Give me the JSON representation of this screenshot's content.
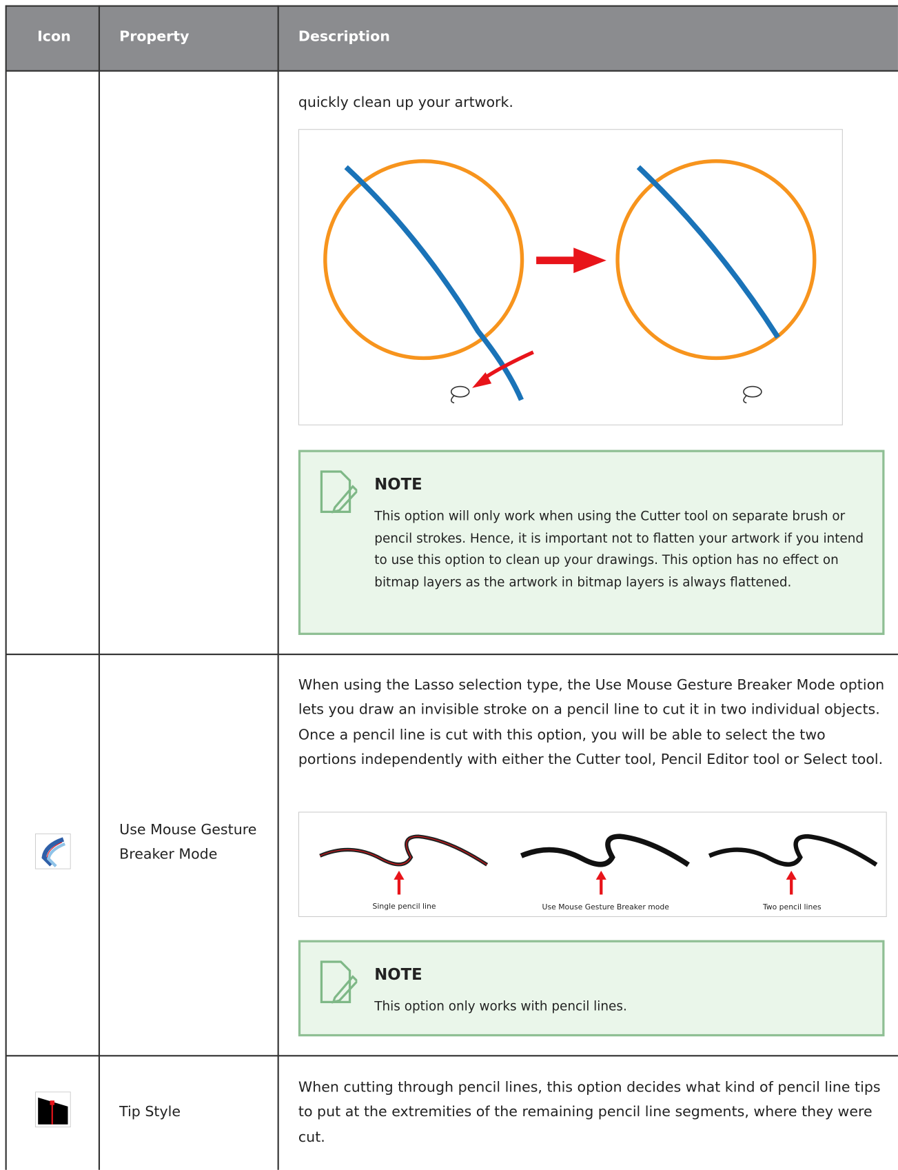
{
  "table": {
    "header": [
      "Icon",
      "Property",
      "Description"
    ],
    "rows": [
      {
        "property": null,
        "description": "quickly clean up your artwork.",
        "note": {
          "title": "NOTE",
          "text": "This option will only work when using the Cutter tool on separate brush or pencil strokes. Hence, it is important not to flatten your artwork if you intend to use this option to clean up your drawings. This option has no effect on bitmap layers as the artwork in bitmap layers is always flattened."
        }
      },
      {
        "property": "Use Mouse Gesture Breaker Mode",
        "description": "When using the Lasso selection type, the Use Mouse Gesture Breaker Mode option lets you draw an invisible stroke on a pencil line to cut it in two individual objects. Once a pencil line is cut with this option, you will be able to select the two portions independently with either the Cutter tool, Pencil Editor tool or Select tool.",
        "captions": [
          "Single pencil line",
          "Use Mouse Gesture Breaker mode",
          "Two pencil lines"
        ],
        "note": {
          "title": "NOTE",
          "text": "This option only works with pencil lines."
        }
      },
      {
        "property": "Tip Style",
        "description": "When cutting through pencil lines, this option decides what kind of pencil line tips to put at the extremities of the remaining pencil line segments, where they were cut."
      }
    ]
  }
}
